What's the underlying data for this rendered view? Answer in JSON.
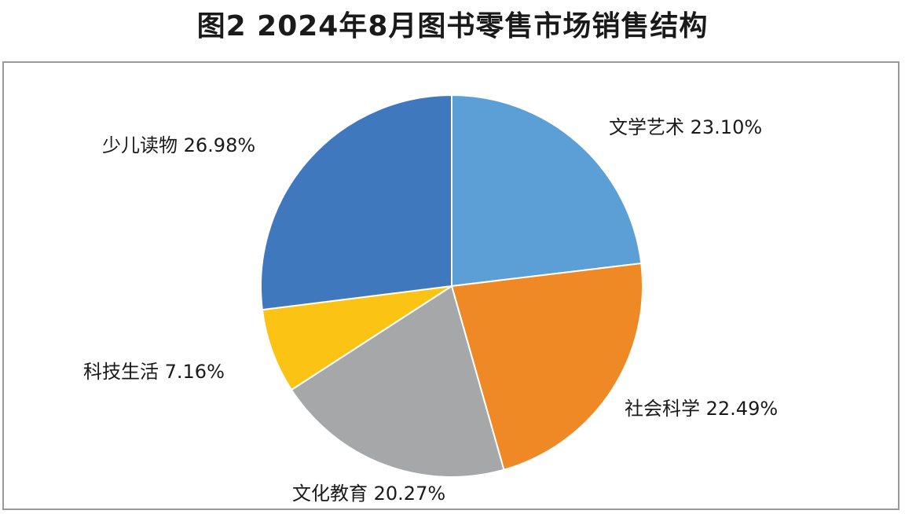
{
  "title": "图2  2024年8月图书零售市场销售结构",
  "chart_data": {
    "type": "pie",
    "title": "图2  2024年8月图书零售市场销售结构",
    "slices": [
      {
        "name": "文学艺术",
        "value": 23.1,
        "label": "23.10%",
        "color": "#5b9fd6"
      },
      {
        "name": "社会科学",
        "value": 22.49,
        "label": "22.49%",
        "color": "#ee8926"
      },
      {
        "name": "文化教育",
        "value": 20.27,
        "label": "20.27%",
        "color": "#a5a7a9"
      },
      {
        "name": "科技生活",
        "value": 7.16,
        "label": "7.16%",
        "color": "#fbc314"
      },
      {
        "name": "少儿读物",
        "value": 26.98,
        "label": "26.98%",
        "color": "#3f78bd"
      }
    ],
    "start": "12 o'clock",
    "direction": "clockwise"
  }
}
